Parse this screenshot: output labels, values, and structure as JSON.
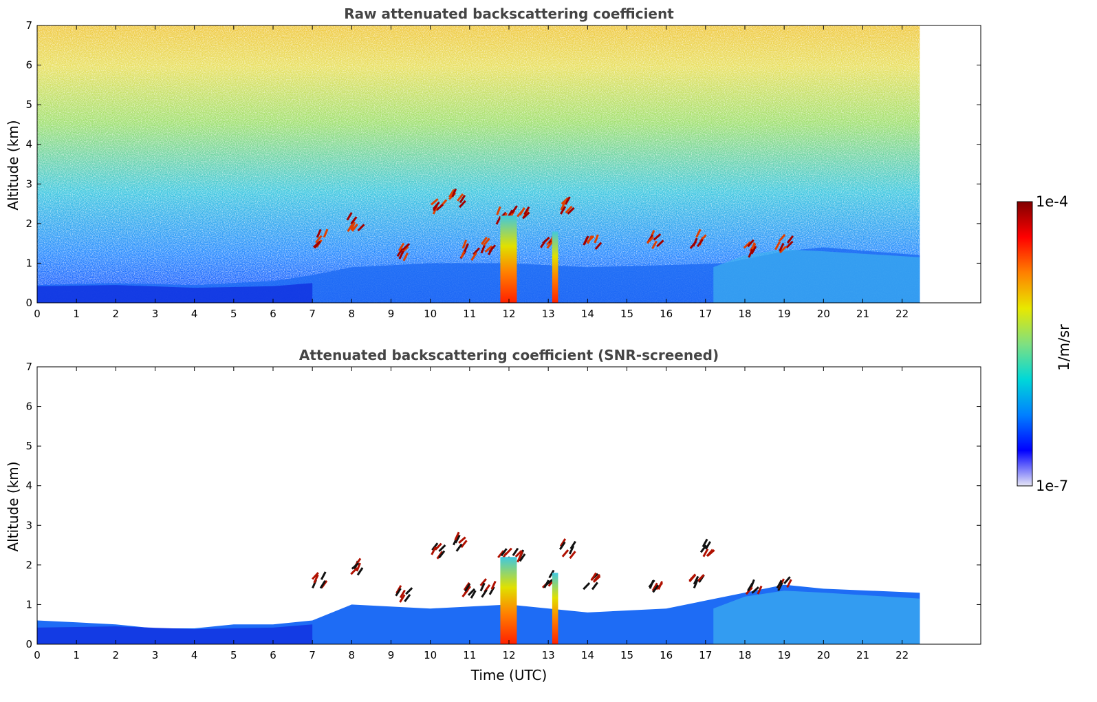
{
  "chart_data": [
    {
      "type": "heatmap",
      "title": "Raw attenuated backscattering coefficient",
      "xlabel": "",
      "ylabel": "Altitude (km)",
      "xlim": [
        0,
        24
      ],
      "ylim": [
        0,
        7
      ],
      "x_ticks": [
        "0",
        "1",
        "2",
        "3",
        "4",
        "5",
        "6",
        "7",
        "8",
        "9",
        "10",
        "11",
        "12",
        "13",
        "14",
        "15",
        "16",
        "17",
        "18",
        "19",
        "20",
        "21",
        "22"
      ],
      "y_ticks": [
        "0",
        "1",
        "2",
        "3",
        "4",
        "5",
        "6",
        "7"
      ],
      "data_extent_x": [
        0,
        22.45
      ],
      "noise_field": true,
      "low_layer": [
        {
          "x": 0,
          "top": 0.45
        },
        {
          "x": 2,
          "top": 0.5
        },
        {
          "x": 4,
          "top": 0.45
        },
        {
          "x": 6,
          "top": 0.55
        },
        {
          "x": 7,
          "top": 0.7
        },
        {
          "x": 8,
          "top": 0.9
        },
        {
          "x": 10,
          "top": 1.0
        },
        {
          "x": 12,
          "top": 1.0
        },
        {
          "x": 14,
          "top": 0.9
        },
        {
          "x": 16,
          "top": 0.95
        },
        {
          "x": 17.5,
          "top": 1.0
        },
        {
          "x": 19,
          "top": 1.3
        },
        {
          "x": 20,
          "top": 1.4
        },
        {
          "x": 22.45,
          "top": 1.2
        }
      ],
      "cloud_patches": [
        {
          "x": 7.2,
          "y": 1.6
        },
        {
          "x": 8.1,
          "y": 2.0
        },
        {
          "x": 9.3,
          "y": 1.3
        },
        {
          "x": 10.2,
          "y": 2.4
        },
        {
          "x": 10.7,
          "y": 2.6
        },
        {
          "x": 11.0,
          "y": 1.3
        },
        {
          "x": 11.5,
          "y": 1.4
        },
        {
          "x": 11.9,
          "y": 2.2
        },
        {
          "x": 12.3,
          "y": 2.2
        },
        {
          "x": 13.0,
          "y": 1.6
        },
        {
          "x": 13.5,
          "y": 2.4
        },
        {
          "x": 14.1,
          "y": 1.6
        },
        {
          "x": 15.7,
          "y": 1.55
        },
        {
          "x": 16.8,
          "y": 1.6
        },
        {
          "x": 18.2,
          "y": 1.4
        },
        {
          "x": 19.0,
          "y": 1.5
        }
      ],
      "rain_columns": [
        {
          "x0": 11.78,
          "x1": 12.2,
          "top": 2.2
        },
        {
          "x0": 13.1,
          "x1": 13.25,
          "top": 1.8
        }
      ]
    },
    {
      "type": "heatmap",
      "title": "Attenuated backscattering coefficient (SNR-screened)",
      "xlabel": "Time (UTC)",
      "ylabel": "Altitude (km)",
      "xlim": [
        0,
        24
      ],
      "ylim": [
        0,
        7
      ],
      "x_ticks": [
        "0",
        "1",
        "2",
        "3",
        "4",
        "5",
        "6",
        "7",
        "8",
        "9",
        "10",
        "11",
        "12",
        "13",
        "14",
        "15",
        "16",
        "17",
        "18",
        "19",
        "20",
        "21",
        "22"
      ],
      "y_ticks": [
        "0",
        "1",
        "2",
        "3",
        "4",
        "5",
        "6",
        "7"
      ],
      "data_extent_x": [
        0,
        22.45
      ],
      "noise_field": false,
      "low_layer": [
        {
          "x": 0,
          "top": 0.6
        },
        {
          "x": 1,
          "top": 0.55
        },
        {
          "x": 2,
          "top": 0.5
        },
        {
          "x": 3,
          "top": 0.4
        },
        {
          "x": 4,
          "top": 0.4
        },
        {
          "x": 5,
          "top": 0.5
        },
        {
          "x": 6,
          "top": 0.5
        },
        {
          "x": 7,
          "top": 0.6
        },
        {
          "x": 8,
          "top": 1.0
        },
        {
          "x": 10,
          "top": 0.9
        },
        {
          "x": 12,
          "top": 1.0
        },
        {
          "x": 14,
          "top": 0.8
        },
        {
          "x": 16,
          "top": 0.9
        },
        {
          "x": 17.5,
          "top": 1.2
        },
        {
          "x": 19,
          "top": 1.5
        },
        {
          "x": 20,
          "top": 1.4
        },
        {
          "x": 22.45,
          "top": 1.3
        }
      ],
      "cloud_patches": [
        {
          "x": 7.2,
          "y": 1.6
        },
        {
          "x": 8.1,
          "y": 2.0
        },
        {
          "x": 9.3,
          "y": 1.3
        },
        {
          "x": 10.2,
          "y": 2.4
        },
        {
          "x": 10.7,
          "y": 2.6
        },
        {
          "x": 11.0,
          "y": 1.3
        },
        {
          "x": 11.5,
          "y": 1.4
        },
        {
          "x": 11.9,
          "y": 2.2
        },
        {
          "x": 12.3,
          "y": 2.2
        },
        {
          "x": 13.0,
          "y": 1.6
        },
        {
          "x": 13.5,
          "y": 2.4
        },
        {
          "x": 14.1,
          "y": 1.6
        },
        {
          "x": 15.7,
          "y": 1.55
        },
        {
          "x": 16.8,
          "y": 1.6
        },
        {
          "x": 17.1,
          "y": 2.45
        },
        {
          "x": 18.2,
          "y": 1.4
        },
        {
          "x": 19.0,
          "y": 1.5
        }
      ],
      "rain_columns": [
        {
          "x0": 11.78,
          "x1": 12.2,
          "top": 2.2
        },
        {
          "x0": 13.1,
          "x1": 13.25,
          "top": 1.8
        }
      ]
    }
  ],
  "colorbar": {
    "label": "1/m/sr",
    "min_label": "1e-7",
    "max_label": "1e-4",
    "colors": [
      "#e6e6f5",
      "#0000ff",
      "#0080ff",
      "#00d8d8",
      "#80e080",
      "#e8e800",
      "#ff8000",
      "#ff0000",
      "#800000"
    ]
  }
}
